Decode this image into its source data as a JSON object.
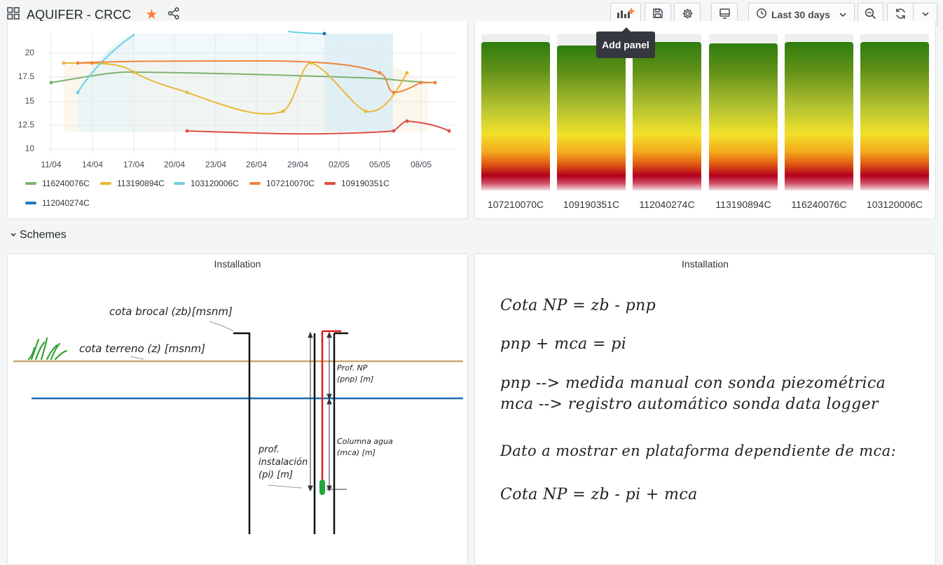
{
  "header": {
    "title": "AQUIFER - CRCC",
    "time_range": "Last 30 days",
    "tooltip": "Add panel"
  },
  "graph_panel": {
    "y_ticks": [
      "20",
      "17.5",
      "15",
      "12.5",
      "10"
    ],
    "x_ticks": [
      "11/04",
      "14/04",
      "17/04",
      "20/04",
      "23/04",
      "26/04",
      "29/04",
      "02/05",
      "05/05",
      "08/05"
    ],
    "legend": [
      {
        "name": "116240076C",
        "color": "#7eb26d"
      },
      {
        "name": "113190894C",
        "color": "#eab839"
      },
      {
        "name": "103120006C",
        "color": "#6ed0e0"
      },
      {
        "name": "107210070C",
        "color": "#ef843c"
      },
      {
        "name": "109190351C",
        "color": "#e24d42"
      },
      {
        "name": "112040274C",
        "color": "#1f78c1"
      }
    ]
  },
  "gauge_panel": {
    "labels": [
      "107210070C",
      "109190351C",
      "112040274C",
      "113190894C",
      "116240076C",
      "103120006C"
    ]
  },
  "row": {
    "title": "Schemes"
  },
  "scheme_left": {
    "title": "Installation",
    "cota_brocal": "cota brocal (zb)[msnm]",
    "cota_terreno": "cota terreno (z) [msnm]",
    "prof_np_1": "Prof. NP",
    "prof_np_2": "(pnp) [m]",
    "columna_1": "Columna agua",
    "columna_2": "(mca) [m]",
    "prof_inst_1": "prof.",
    "prof_inst_2": "instalación",
    "prof_inst_3": "(pi) [m]"
  },
  "scheme_right": {
    "title": "Installation",
    "line1": "Cota NP = zb - pnp",
    "line2": "pnp + mca = pi",
    "line3": "pnp --> medida manual con sonda piezométrica",
    "line4": "mca --> registro automático sonda data logger",
    "line5": "Dato a mostrar en plataforma dependiente de mca:",
    "line6": "Cota NP = zb - pi + mca"
  }
}
